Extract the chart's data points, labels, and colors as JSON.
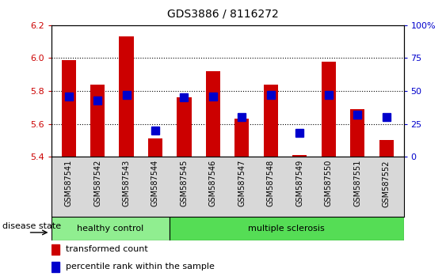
{
  "title": "GDS3886 / 8116272",
  "samples": [
    "GSM587541",
    "GSM587542",
    "GSM587543",
    "GSM587544",
    "GSM587545",
    "GSM587546",
    "GSM587547",
    "GSM587548",
    "GSM587549",
    "GSM587550",
    "GSM587551",
    "GSM587552"
  ],
  "bar_values": [
    5.99,
    5.84,
    6.13,
    5.51,
    5.76,
    5.92,
    5.63,
    5.84,
    5.41,
    5.98,
    5.69,
    5.5
  ],
  "percentile_values": [
    46,
    43,
    47,
    20,
    45,
    46,
    30,
    47,
    18,
    47,
    32,
    30
  ],
  "bar_base": 5.4,
  "ylim_left": [
    5.4,
    6.2
  ],
  "ylim_right": [
    0,
    100
  ],
  "yticks_left": [
    5.4,
    5.6,
    5.8,
    6.0,
    6.2
  ],
  "yticks_right": [
    0,
    25,
    50,
    75,
    100
  ],
  "bar_color": "#cc0000",
  "percentile_color": "#0000cc",
  "group_labels": [
    "healthy control",
    "multiple sclerosis"
  ],
  "healthy_count": 4,
  "group_color_hc": "#90ee90",
  "group_color_ms": "#55dd55",
  "gridline_color": "black",
  "gridline_style": "dotted",
  "gridline_values": [
    5.6,
    5.8,
    6.0
  ],
  "bar_width": 0.5,
  "percentile_marker_size": 7,
  "title_fontsize": 10,
  "tick_fontsize": 8,
  "label_fontsize": 8,
  "legend_fontsize": 8
}
